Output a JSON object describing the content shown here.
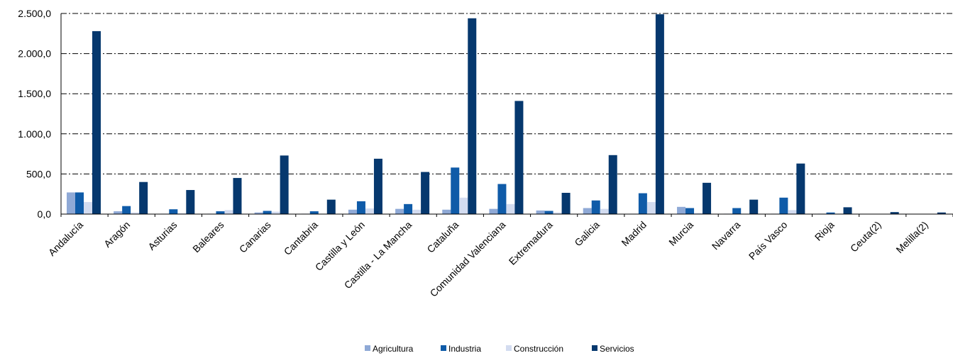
{
  "chart_data": {
    "type": "bar",
    "categories": [
      "Andalucía",
      "Aragón",
      "Asturias",
      "Baleares",
      "Canarias",
      "Cantabria",
      "Castilla y León",
      "Castilla - La Mancha",
      "Cataluña",
      "Comunidad Valenciana",
      "Extremadura",
      "Galicia",
      "Madrid",
      "Murcia",
      "Navarra",
      "País Vasco",
      "Rioja",
      "Ceuta(2)",
      "Melilla(2)"
    ],
    "series": [
      {
        "name": "Agricultura",
        "color": "#8fa9d6",
        "values": [
          270,
          35,
          5,
          5,
          20,
          5,
          55,
          65,
          55,
          65,
          45,
          75,
          5,
          90,
          5,
          5,
          5,
          0,
          0
        ]
      },
      {
        "name": "Industria",
        "color": "#0f5ba8",
        "values": [
          270,
          100,
          60,
          35,
          40,
          35,
          160,
          125,
          580,
          375,
          40,
          170,
          260,
          75,
          75,
          205,
          20,
          0,
          0
        ]
      },
      {
        "name": "Construcción",
        "color": "#d3dcf0",
        "values": [
          150,
          20,
          10,
          50,
          30,
          5,
          70,
          55,
          205,
          125,
          20,
          65,
          150,
          15,
          5,
          50,
          5,
          0,
          0
        ]
      },
      {
        "name": "Servicios",
        "color": "#06386e",
        "values": [
          2280,
          400,
          300,
          450,
          730,
          180,
          690,
          525,
          2440,
          1410,
          265,
          735,
          2490,
          390,
          180,
          630,
          85,
          25,
          20
        ]
      }
    ],
    "yticks": [
      "0,0",
      "500,0",
      "1.000,0",
      "1.500,0",
      "2.000,0",
      "2.500,0"
    ],
    "ylim": [
      0,
      2500
    ],
    "grid": true,
    "legend_position": "bottom"
  }
}
